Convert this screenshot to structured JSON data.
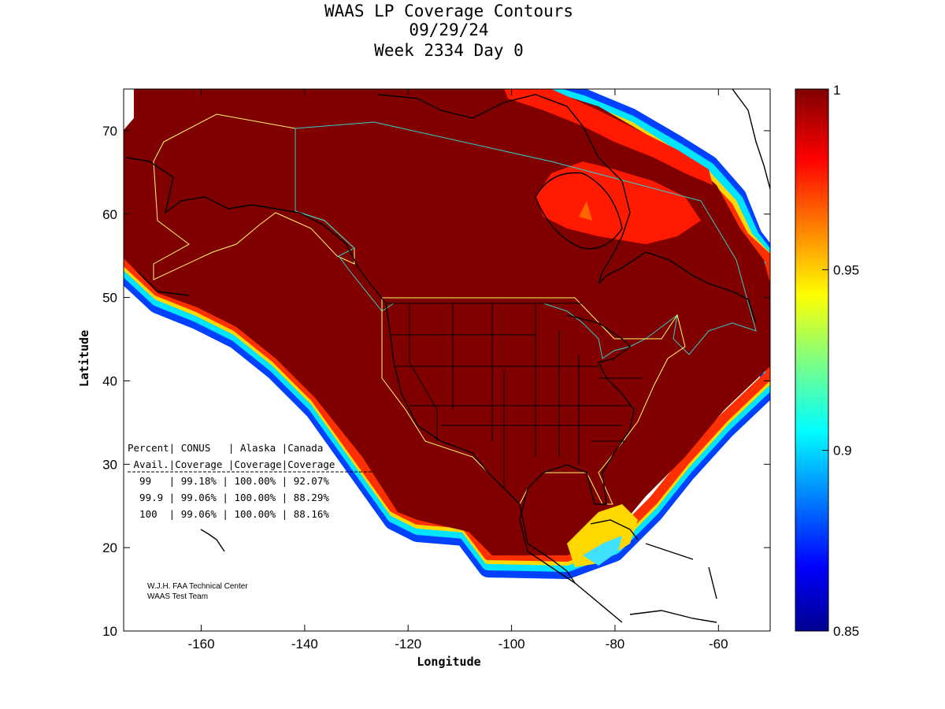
{
  "title": {
    "line1": "WAAS LP Coverage Contours",
    "line2": "09/29/24",
    "line3": "Week 2334 Day 0"
  },
  "axes": {
    "xlabel": "Longitude",
    "ylabel": "Latitude",
    "x_ticks": [
      "-160",
      "-140",
      "-120",
      "-100",
      "-80",
      "-60"
    ],
    "y_ticks": [
      "70",
      "60",
      "50",
      "40",
      "30",
      "20",
      "10"
    ],
    "x_range": [
      -175,
      -50
    ],
    "y_range": [
      10,
      75
    ]
  },
  "colorbar": {
    "ticks": [
      "1",
      "0.95",
      "0.9",
      "0.85"
    ],
    "range": [
      0.85,
      1
    ],
    "colormap": "jet"
  },
  "table": {
    "header1": "Percent| CONUS   | Alaska |Canada",
    "header2": " Avail.|Coverage |Coverage|Coverage",
    "rows": [
      "  99   | 99.18% | 100.00% | 92.07%",
      "  99.9 | 99.06% | 100.00% | 88.29%",
      "  100  | 99.06% | 100.00% | 88.16%"
    ]
  },
  "credit": {
    "line1": "W.J.H. FAA Technical Center",
    "line2": "WAAS Test Team"
  },
  "colors": {
    "full_coverage": "#800000",
    "high": "#ff1a00",
    "mid": "#ffff00",
    "low": "#00bfff",
    "lowest": "#00008f",
    "coast": "#000000",
    "alaska_boundary": "#ffff66",
    "canada_boundary": "#33cccc"
  }
}
